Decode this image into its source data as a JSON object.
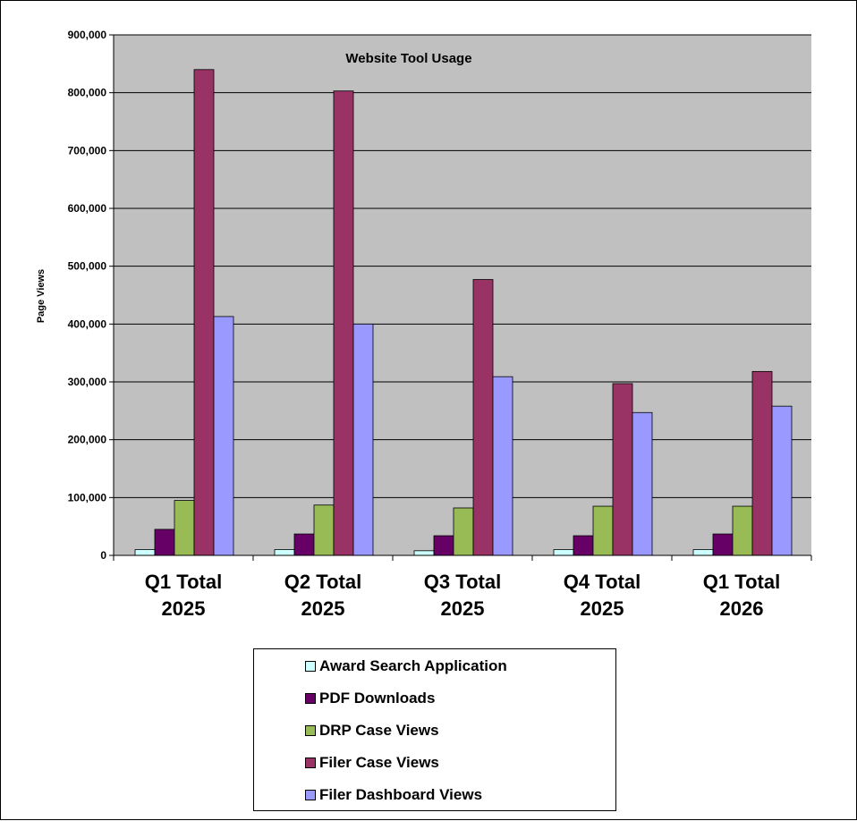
{
  "chart_data": {
    "type": "bar",
    "title": "Website Tool Usage",
    "ylabel": "Page Views",
    "xlabel": "",
    "ylim": [
      0,
      900000
    ],
    "yticks": [
      "0",
      "100,000",
      "200,000",
      "300,000",
      "400,000",
      "500,000",
      "600,000",
      "700,000",
      "800,000",
      "900,000"
    ],
    "grid": true,
    "legend_position": "bottom",
    "categories": [
      [
        "Q1 Total",
        "2025"
      ],
      [
        "Q2 Total",
        "2025"
      ],
      [
        "Q3 Total",
        "2025"
      ],
      [
        "Q4 Total",
        "2025"
      ],
      [
        "Q1 Total",
        "2026"
      ]
    ],
    "series": [
      {
        "name": "Award Search Application",
        "color": "#ccffff",
        "values": [
          10000,
          10000,
          8000,
          10000,
          10000
        ]
      },
      {
        "name": "PDF Downloads",
        "color": "#660066",
        "values": [
          45000,
          37000,
          34000,
          34000,
          37000
        ]
      },
      {
        "name": "DRP Case Views",
        "color": "#99bb55",
        "values": [
          95000,
          87000,
          82000,
          85000,
          85000
        ]
      },
      {
        "name": "Filer Case Views",
        "color": "#993366",
        "values": [
          840000,
          803000,
          477000,
          297000,
          318000
        ]
      },
      {
        "name": "Filer Dashboard Views",
        "color": "#9999ff",
        "values": [
          413000,
          400000,
          309000,
          247000,
          258000
        ]
      }
    ],
    "plot_background": "#c0c0c0"
  }
}
